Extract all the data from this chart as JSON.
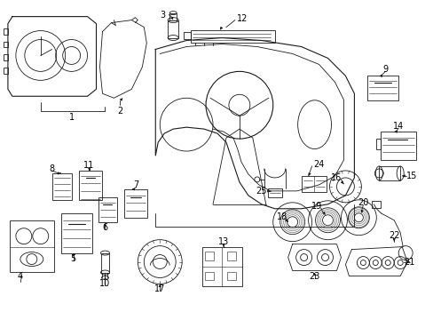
{
  "background_color": "#ffffff",
  "fig_width": 4.89,
  "fig_height": 3.6,
  "dpi": 100,
  "line_color": "#1a1a1a",
  "text_color": "#000000",
  "label_fontsize": 7.0
}
